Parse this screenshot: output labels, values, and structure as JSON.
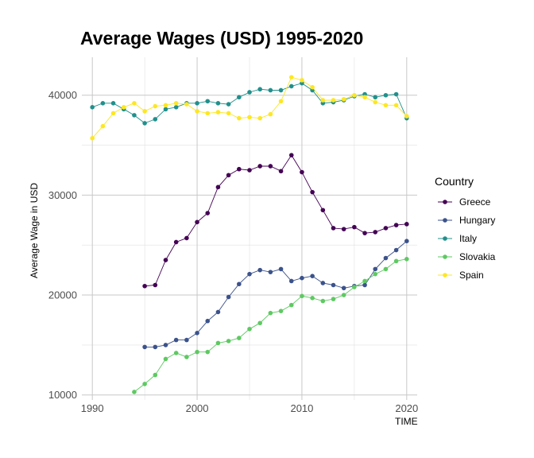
{
  "chart_data": {
    "type": "line",
    "title": "Average Wages (USD) 1995-2020",
    "xlabel": "TIME",
    "ylabel": "Average Wage in USD",
    "xlim": [
      1989,
      2021
    ],
    "ylim": [
      9500,
      43800
    ],
    "x_ticks": [
      1990,
      2000,
      2010,
      2020
    ],
    "y_ticks": [
      10000,
      20000,
      30000,
      40000
    ],
    "grid": true,
    "legend": {
      "title": "Country",
      "position": "right"
    },
    "series": [
      {
        "name": "Greece",
        "color": "#440154",
        "x": [
          1995,
          1996,
          1997,
          1998,
          1999,
          2000,
          2001,
          2002,
          2003,
          2004,
          2005,
          2006,
          2007,
          2008,
          2009,
          2010,
          2011,
          2012,
          2013,
          2014,
          2015,
          2016,
          2017,
          2018,
          2019,
          2020
        ],
        "y": [
          20900,
          21000,
          23500,
          25300,
          25700,
          27300,
          28200,
          30800,
          32000,
          32600,
          32500,
          32900,
          32900,
          32400,
          34000,
          32300,
          30300,
          28500,
          26700,
          26600,
          26800,
          26200,
          26300,
          26700,
          27000,
          27100
        ]
      },
      {
        "name": "Hungary",
        "color": "#3b528b",
        "x": [
          1995,
          1996,
          1997,
          1998,
          1999,
          2000,
          2001,
          2002,
          2003,
          2004,
          2005,
          2006,
          2007,
          2008,
          2009,
          2010,
          2011,
          2012,
          2013,
          2014,
          2015,
          2016,
          2017,
          2018,
          2019,
          2020
        ],
        "y": [
          14800,
          14800,
          15000,
          15500,
          15500,
          16200,
          17400,
          18300,
          19800,
          21100,
          22100,
          22500,
          22300,
          22600,
          21400,
          21700,
          21900,
          21200,
          21000,
          20700,
          20900,
          21000,
          22600,
          23700,
          24500,
          25400
        ]
      },
      {
        "name": "Italy",
        "color": "#21908c",
        "x": [
          1990,
          1991,
          1992,
          1993,
          1994,
          1995,
          1996,
          1997,
          1998,
          1999,
          2000,
          2001,
          2002,
          2003,
          2004,
          2005,
          2006,
          2007,
          2008,
          2009,
          2010,
          2011,
          2012,
          2013,
          2014,
          2015,
          2016,
          2017,
          2018,
          2019,
          2020
        ],
        "y": [
          38800,
          39200,
          39200,
          38600,
          38000,
          37200,
          37600,
          38600,
          38800,
          39200,
          39200,
          39400,
          39200,
          39100,
          39800,
          40300,
          40600,
          40500,
          40500,
          40900,
          41200,
          40500,
          39200,
          39300,
          39500,
          39900,
          40100,
          39800,
          40000,
          40100,
          37700
        ]
      },
      {
        "name": "Slovakia",
        "color": "#5ec962",
        "x": [
          1994,
          1995,
          1996,
          1997,
          1998,
          1999,
          2000,
          2001,
          2002,
          2003,
          2004,
          2005,
          2006,
          2007,
          2008,
          2009,
          2010,
          2011,
          2012,
          2013,
          2014,
          2015,
          2016,
          2017,
          2018,
          2019,
          2020
        ],
        "y": [
          10300,
          11100,
          12000,
          13600,
          14200,
          13800,
          14300,
          14300,
          15200,
          15400,
          15700,
          16600,
          17200,
          18200,
          18400,
          19000,
          19900,
          19700,
          19400,
          19600,
          20000,
          20800,
          21400,
          22100,
          22600,
          23400,
          23600
        ]
      },
      {
        "name": "Spain",
        "color": "#fde725",
        "x": [
          1990,
          1991,
          1992,
          1993,
          1994,
          1995,
          1996,
          1997,
          1998,
          1999,
          2000,
          2001,
          2002,
          2003,
          2004,
          2005,
          2006,
          2007,
          2008,
          2009,
          2010,
          2011,
          2012,
          2013,
          2014,
          2015,
          2016,
          2017,
          2018,
          2019,
          2020
        ],
        "y": [
          35700,
          36900,
          38200,
          38800,
          39200,
          38400,
          38900,
          39000,
          39200,
          39100,
          38400,
          38200,
          38300,
          38200,
          37700,
          37800,
          37700,
          38100,
          39400,
          41800,
          41500,
          40800,
          39500,
          39500,
          39600,
          40000,
          39800,
          39300,
          39000,
          39000,
          37900
        ]
      }
    ]
  }
}
